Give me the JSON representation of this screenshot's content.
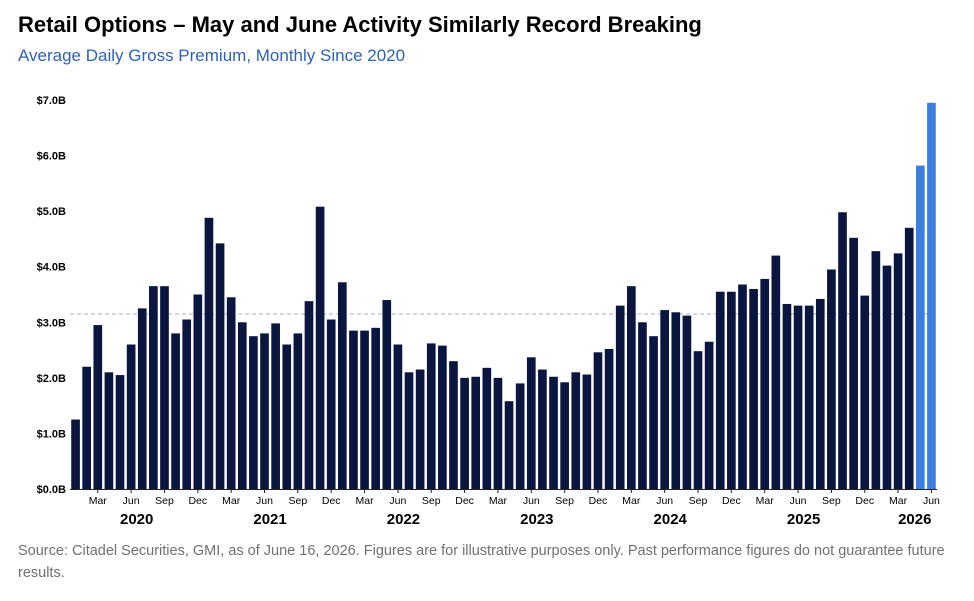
{
  "header": {
    "title": "Retail Options – May and June Activity Similarly Record Breaking",
    "subtitle": "Average Daily Gross Premium, Monthly Since 2020"
  },
  "footer": {
    "source": "Source: Citadel Securities, GMI, as of June 16, 2026. Figures are for illustrative purposes only. Past performance figures do not guarantee future results."
  },
  "colors": {
    "bar": "#0b1640",
    "highlight": "#3a7fe0",
    "reference_line": "#a8b0bc",
    "axis": "#222222"
  },
  "chart_data": {
    "type": "bar",
    "title": "Retail Options – May and June Activity Similarly Record Breaking",
    "subtitle": "Average Daily Gross Premium, Monthly Since 2020",
    "ylim": [
      0,
      7
    ],
    "y_ticks": [
      "$0.0B",
      "$1.0B",
      "$2.0B",
      "$3.0B",
      "$4.0B",
      "$5.0B",
      "$6.0B",
      "$7.0B"
    ],
    "y_tick_values": [
      0,
      1,
      2,
      3,
      4,
      5,
      6,
      7
    ],
    "x_tick_labels": [
      {
        "month": "Mar",
        "index": 2
      },
      {
        "month": "Jun",
        "index": 5
      },
      {
        "month": "Sep",
        "index": 8
      },
      {
        "month": "Dec",
        "index": 11
      },
      {
        "month": "Mar",
        "index": 14
      },
      {
        "month": "Jun",
        "index": 17
      },
      {
        "month": "Sep",
        "index": 20
      },
      {
        "month": "Dec",
        "index": 23
      },
      {
        "month": "Mar",
        "index": 26
      },
      {
        "month": "Jun",
        "index": 29
      },
      {
        "month": "Sep",
        "index": 32
      },
      {
        "month": "Dec",
        "index": 35
      },
      {
        "month": "Mar",
        "index": 38
      },
      {
        "month": "Jun",
        "index": 41
      },
      {
        "month": "Sep",
        "index": 44
      },
      {
        "month": "Dec",
        "index": 47
      },
      {
        "month": "Mar",
        "index": 50
      },
      {
        "month": "Jun",
        "index": 53
      },
      {
        "month": "Sep",
        "index": 56
      },
      {
        "month": "Dec",
        "index": 59
      },
      {
        "month": "Mar",
        "index": 62
      },
      {
        "month": "Jun",
        "index": 65
      },
      {
        "month": "Sep",
        "index": 68
      },
      {
        "month": "Dec",
        "index": 71
      },
      {
        "month": "Mar",
        "index": 74
      },
      {
        "month": "Jun",
        "index": 77
      }
    ],
    "year_labels": [
      {
        "year": "2020",
        "index": 5.5
      },
      {
        "year": "2021",
        "index": 17.5
      },
      {
        "year": "2022",
        "index": 29.5
      },
      {
        "year": "2023",
        "index": 41.5
      },
      {
        "year": "2024",
        "index": 53.5
      },
      {
        "year": "2025",
        "index": 65.5
      },
      {
        "year": "2026",
        "index": 75.5
      }
    ],
    "reference_line": 3.15,
    "values": [
      1.25,
      2.2,
      2.95,
      2.1,
      2.05,
      2.6,
      3.25,
      3.65,
      3.65,
      2.8,
      3.05,
      3.5,
      4.88,
      4.42,
      3.45,
      3.0,
      2.75,
      2.8,
      2.98,
      2.6,
      2.8,
      3.38,
      5.08,
      3.05,
      3.72,
      2.85,
      2.85,
      2.9,
      3.4,
      2.6,
      2.1,
      2.15,
      2.62,
      2.58,
      2.3,
      2.0,
      2.02,
      2.18,
      2.0,
      1.58,
      1.9,
      2.37,
      2.15,
      2.02,
      1.92,
      2.1,
      2.06,
      2.46,
      2.52,
      3.3,
      3.65,
      3.0,
      2.75,
      3.22,
      3.18,
      3.12,
      2.48,
      2.65,
      3.55,
      3.55,
      3.68,
      3.6,
      3.78,
      4.2,
      3.33,
      3.3,
      3.3,
      3.42,
      3.95,
      4.98,
      4.52,
      3.48,
      4.28,
      4.02,
      4.24,
      4.7,
      5.82,
      6.95
    ],
    "highlight_indices": [
      76,
      77
    ]
  }
}
